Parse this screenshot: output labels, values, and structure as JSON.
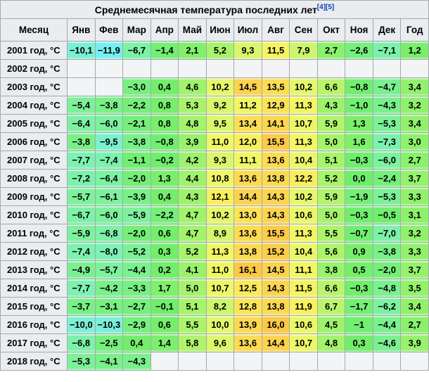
{
  "title_refs": [
    "[4]",
    "[5]"
  ],
  "colors": {
    "header_bg": "#eaecf0",
    "border": "#a2a9b1",
    "empty_cell_bg": "#f3f4f5",
    "link_blue": "#0645ad",
    "text": "#000000",
    "scale": [
      {
        "t": -12,
        "c": "#78EFF0"
      },
      {
        "t": -10,
        "c": "#7CF0D5"
      },
      {
        "t": -8,
        "c": "#7DF1B5"
      },
      {
        "t": -6,
        "c": "#7DF19E"
      },
      {
        "t": -4,
        "c": "#7AF08A"
      },
      {
        "t": -2,
        "c": "#75EF78"
      },
      {
        "t": 0,
        "c": "#6FEE6B"
      },
      {
        "t": 2,
        "c": "#81F06C"
      },
      {
        "t": 4,
        "c": "#99F26C"
      },
      {
        "t": 6,
        "c": "#B1F46C"
      },
      {
        "t": 8,
        "c": "#CBF56D"
      },
      {
        "t": 10,
        "c": "#E2F76C"
      },
      {
        "t": 11,
        "c": "#F0F766"
      },
      {
        "t": 12,
        "c": "#F8EF5F"
      },
      {
        "t": 13,
        "c": "#FBE257"
      },
      {
        "t": 14,
        "c": "#FCD751"
      },
      {
        "t": 15,
        "c": "#FCCE4C"
      },
      {
        "t": 16,
        "c": "#FCC847"
      }
    ]
  },
  "chart_data": {
    "type": "table",
    "title": "Среднемесячная температура последних лет",
    "columns": [
      "Месяц",
      "Янв",
      "Фев",
      "Мар",
      "Апр",
      "Май",
      "Июн",
      "Июл",
      "Авг",
      "Сен",
      "Окт",
      "Ноя",
      "Дек",
      "Год"
    ],
    "rows": [
      {
        "label": "2001 год, °C",
        "values": [
          "−10,1",
          "−11,9",
          "−6,7",
          "−1,4",
          "2,1",
          "5,2",
          "9,3",
          "11,5",
          "7,9",
          "2,7",
          "−2,6",
          "−7,1",
          "1,2"
        ]
      },
      {
        "label": "2002 год, °C",
        "values": [
          "",
          "",
          "",
          "",
          "",
          "",
          "",
          "",
          "",
          "",
          "",
          "",
          ""
        ]
      },
      {
        "label": "2003 год, °C",
        "values": [
          "",
          "",
          "−3,0",
          "0,4",
          "4,6",
          "10,2",
          "14,5",
          "13,5",
          "10,2",
          "6,6",
          "−0,8",
          "−4,7",
          "3,4"
        ]
      },
      {
        "label": "2004 год, °C",
        "values": [
          "−5,4",
          "−3,8",
          "−2,2",
          "0,8",
          "5,3",
          "9,2",
          "11,2",
          "12,9",
          "11,3",
          "4,3",
          "−1,0",
          "−4,3",
          "3,2"
        ]
      },
      {
        "label": "2005 год, °C",
        "values": [
          "−6,4",
          "−6,0",
          "−2,1",
          "0,8",
          "4,8",
          "9,5",
          "13,4",
          "14,1",
          "10,7",
          "5,9",
          "1,3",
          "−5,3",
          "3,4"
        ]
      },
      {
        "label": "2006 год, °C",
        "values": [
          "−3,8",
          "−9,5",
          "−3,8",
          "−0,8",
          "3,9",
          "11,0",
          "12,0",
          "15,5",
          "11,3",
          "5,0",
          "1,6",
          "−7,3",
          "3,0"
        ]
      },
      {
        "label": "2007 год, °C",
        "values": [
          "−7,7",
          "−7,4",
          "−1,1",
          "−0,2",
          "4,2",
          "9,3",
          "11,1",
          "13,6",
          "10,4",
          "5,1",
          "−0,3",
          "−6,0",
          "2,7"
        ]
      },
      {
        "label": "2008 год, °C",
        "values": [
          "−7,2",
          "−6,4",
          "−2,0",
          "1,3",
          "4,4",
          "10,8",
          "13,6",
          "13,8",
          "12,2",
          "5,2",
          "0,0",
          "−2,4",
          "3,7"
        ]
      },
      {
        "label": "2009 год, °C",
        "values": [
          "−5,7",
          "−6,1",
          "−3,9",
          "0,4",
          "4,3",
          "12,1",
          "14,4",
          "14,3",
          "10,2",
          "5,9",
          "−1,9",
          "−5,3",
          "3,3"
        ]
      },
      {
        "label": "2010 год, °C",
        "values": [
          "−6,7",
          "−6,0",
          "−5,9",
          "−2,2",
          "4,7",
          "10,2",
          "13,0",
          "14,3",
          "10,6",
          "5,0",
          "−0,3",
          "−0,5",
          "3,1"
        ]
      },
      {
        "label": "2011 год, °C",
        "values": [
          "−5,9",
          "−6,8",
          "−2,0",
          "0,6",
          "4,7",
          "8,9",
          "13,6",
          "15,5",
          "11,3",
          "5,5",
          "−0,7",
          "−7,0",
          "3,2"
        ]
      },
      {
        "label": "2012 год, °C",
        "values": [
          "−7,4",
          "−8,0",
          "−5,2",
          "0,3",
          "5,2",
          "11,3",
          "13,8",
          "15,2",
          "10,4",
          "5,6",
          "0,9",
          "−3,8",
          "3,3"
        ]
      },
      {
        "label": "2013 год, °C",
        "values": [
          "−4,9",
          "−5,7",
          "−4,4",
          "0,2",
          "4,1",
          "11,0",
          "16,1",
          "14,5",
          "11,1",
          "3,8",
          "0,5",
          "−2,0",
          "3,7"
        ]
      },
      {
        "label": "2014 год, °C",
        "values": [
          "−7,7",
          "−4,2",
          "−3,3",
          "1,7",
          "5,0",
          "10,7",
          "12,5",
          "14,3",
          "11,5",
          "6,6",
          "−0,3",
          "−4,8",
          "3,5"
        ]
      },
      {
        "label": "2015 год, °C",
        "values": [
          "−3,7",
          "−3,1",
          "−2,7",
          "−0,1",
          "5,1",
          "8,2",
          "12,8",
          "13,8",
          "11,9",
          "6,7",
          "−1,7",
          "−6,2",
          "3,4"
        ]
      },
      {
        "label": "2016 год, °C",
        "values": [
          "−10,0",
          "−10,3",
          "−2,9",
          "0,6",
          "5,5",
          "10,0",
          "13,9",
          "16,0",
          "10,6",
          "4,5",
          "−1",
          "−4,4",
          "2,7"
        ]
      },
      {
        "label": "2017 год, °C",
        "values": [
          "−6,8",
          "−2,5",
          "0,4",
          "1,4",
          "5,8",
          "9,6",
          "13,6",
          "14,4",
          "10,7",
          "4,8",
          "0,3",
          "−4,6",
          "3,9"
        ]
      },
      {
        "label": "2018 год, °C",
        "values": [
          "−5,3",
          "−4,1",
          "−4,3",
          "",
          "",
          "",
          "",
          "",
          "",
          "",
          "",
          "",
          ""
        ]
      }
    ]
  }
}
